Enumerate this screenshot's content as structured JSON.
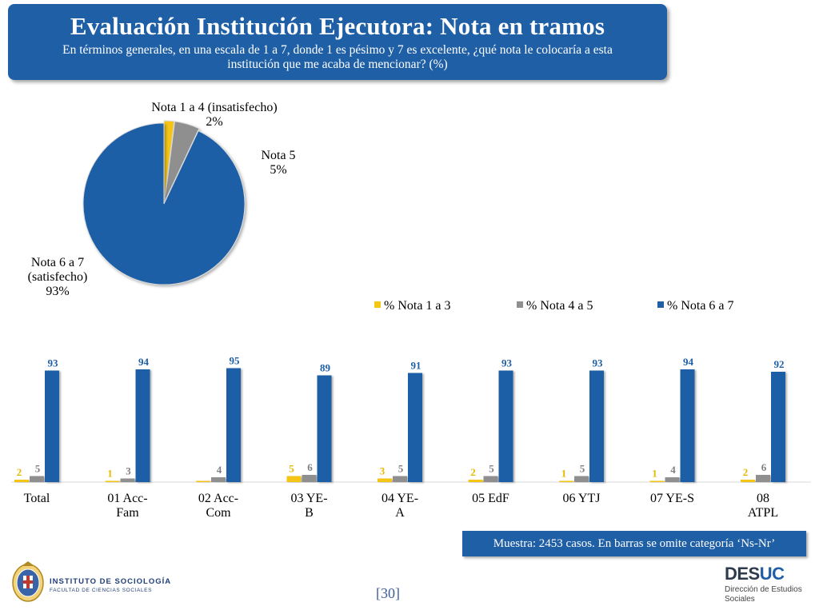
{
  "header": {
    "title": "Evaluación Institución Ejecutora: Nota en tramos",
    "subtitle": "En términos generales, en una escala de 1 a 7, donde 1 es pésimo y 7 es excelente, ¿qué nota le colocaría a esta institución que me acaba de mencionar? (%)"
  },
  "colors": {
    "yellow": "#f5c518",
    "gray": "#8f8f8f",
    "blue": "#1f5fa6",
    "header_bg": "#1f5fa6"
  },
  "chart_data": [
    {
      "type": "pie",
      "slices": [
        {
          "label_lines": [
            "Nota 1 a 4 (insatisfecho)"
          ],
          "value": 2,
          "value_text": "2%",
          "color": "#f5c518"
        },
        {
          "label_lines": [
            "Nota 5"
          ],
          "value": 5,
          "value_text": "5%",
          "color": "#8f8f8f"
        },
        {
          "label_lines": [
            "Nota 6 a 7",
            "(satisfecho)"
          ],
          "value": 93,
          "value_text": "93%",
          "color": "#1f5fa6"
        }
      ]
    },
    {
      "type": "bar",
      "categories": [
        [
          "Total"
        ],
        [
          "01 Acc-",
          "Fam"
        ],
        [
          "02 Acc-",
          "Com"
        ],
        [
          "03 YE-",
          "B"
        ],
        [
          "04 YE-",
          "A"
        ],
        [
          "05 EdF"
        ],
        [
          "06 YTJ"
        ],
        [
          "07 YE-S"
        ],
        [
          "08",
          "ATPL"
        ]
      ],
      "series": [
        {
          "name": "% Nota 1 a 3",
          "color": "#f5c518",
          "values": [
            2,
            1,
            0,
            5,
            3,
            2,
            1,
            1,
            2
          ],
          "labels": [
            "2",
            "1",
            "",
            "5",
            "3",
            "2",
            "1",
            "1",
            "2"
          ]
        },
        {
          "name": "% Nota 4 a 5",
          "color": "#8f8f8f",
          "values": [
            5,
            3,
            4,
            6,
            5,
            5,
            5,
            4,
            6
          ],
          "labels": [
            "5",
            "3",
            "4",
            "6",
            "5",
            "5",
            "5",
            "4",
            "6"
          ]
        },
        {
          "name": "% Nota 6 a 7",
          "color": "#1f5fa6",
          "values": [
            93,
            94,
            95,
            89,
            91,
            93,
            93,
            94,
            92
          ],
          "labels": [
            "93",
            "94",
            "95",
            "89",
            "91",
            "93",
            "93",
            "94",
            "92"
          ]
        }
      ],
      "ylim": [
        0,
        100
      ],
      "legend_position": "top-right"
    }
  ],
  "footer": {
    "sample_note": "Muestra: 2453 casos. En barras se omite categoría ‘Ns-Nr’",
    "page_number": "[30]",
    "institute_name": "INSTITUTO DE SOCIOLOGÍA",
    "institute_faculty": "FACULTAD DE CIENCIAS SOCIALES",
    "desuc_brand_a": "DES",
    "desuc_brand_b": "UC",
    "desuc_sub_1": "Dirección de Estudios",
    "desuc_sub_2": "Sociales"
  }
}
